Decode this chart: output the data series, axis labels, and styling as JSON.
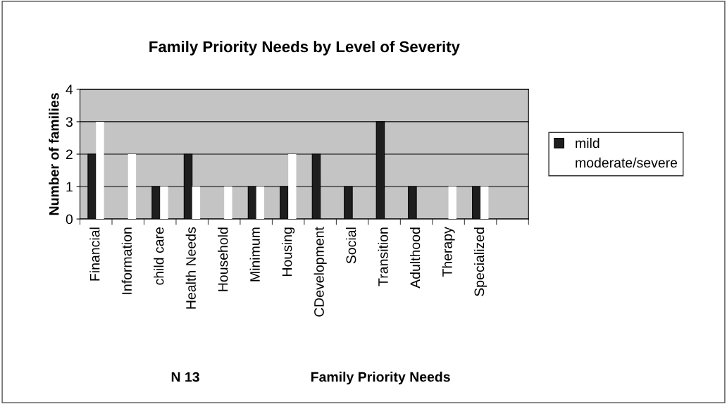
{
  "chart_data": {
    "type": "bar",
    "title": "Family Priority Needs by Level of Severity",
    "xlabel": "Family Priority Needs",
    "ylabel": "Number of families",
    "annotations": [
      "N 13"
    ],
    "categories": [
      "Financial",
      "Information",
      "child care",
      "Health Needs",
      "Household",
      "Minimum",
      "Housing",
      "CDevelopment",
      "Social",
      "Transition",
      "Adulthood",
      "Therapy",
      "Specialized",
      null
    ],
    "series": [
      {
        "name": "mild",
        "color": "#1e1e1e",
        "values": [
          2,
          null,
          1,
          2,
          null,
          1,
          1,
          2,
          1,
          3,
          1,
          null,
          1,
          null
        ]
      },
      {
        "name": "moderate/severe",
        "color": "#ffffff",
        "values": [
          3,
          2,
          1,
          1,
          1,
          1,
          2,
          null,
          null,
          null,
          null,
          1,
          1,
          null
        ]
      }
    ],
    "ylim": [
      0,
      4
    ],
    "yticks": [
      0,
      1,
      2,
      3,
      4
    ],
    "grid": "y",
    "legend": "right"
  }
}
